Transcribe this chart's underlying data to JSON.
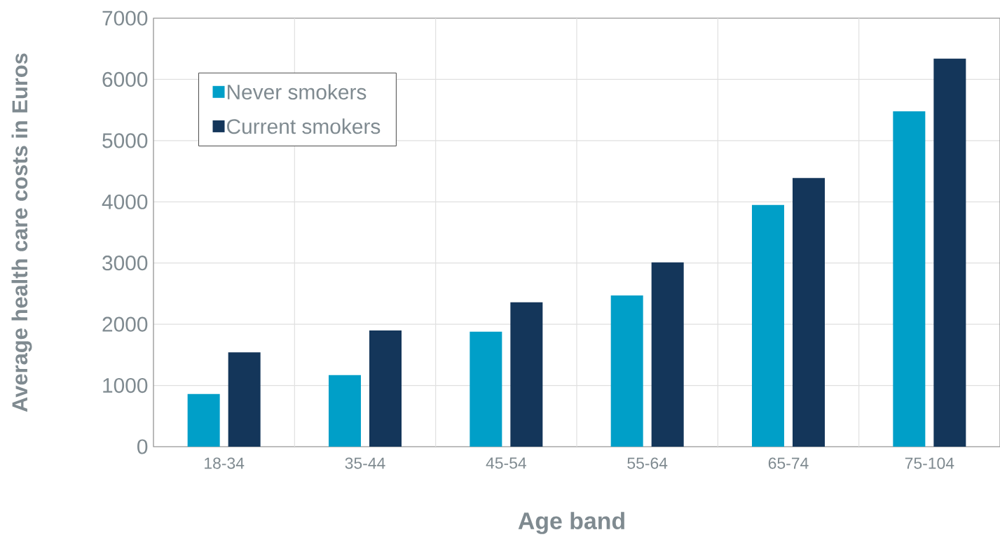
{
  "chart_data": {
    "type": "bar",
    "xlabel": "Age band",
    "ylabel": "Average health care costs in Euros",
    "categories": [
      "18-34",
      "35-44",
      "45-54",
      "55-64",
      "65-74",
      "75-104"
    ],
    "series": [
      {
        "name": "Never smokers",
        "color": "#009fc8",
        "values": [
          860,
          1170,
          1880,
          2470,
          3950,
          5480
        ]
      },
      {
        "name": "Current smokers",
        "color": "#14365a",
        "values": [
          1540,
          1900,
          2360,
          3010,
          4390,
          6340
        ]
      }
    ],
    "ylim": [
      0,
      7000
    ],
    "yticks": [
      0,
      1000,
      2000,
      3000,
      4000,
      5000,
      6000,
      7000
    ],
    "grid": true,
    "legend": "top left"
  }
}
